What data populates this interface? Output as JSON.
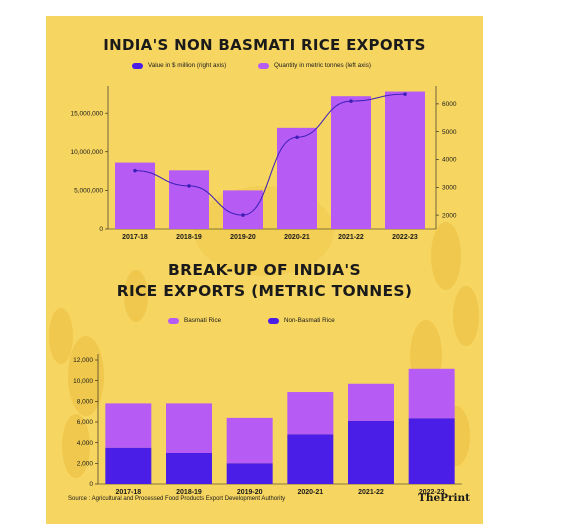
{
  "colors": {
    "background": "#f6d561",
    "violet": "#b65cf5",
    "blue": "#4a1ee6",
    "line": "#3d1fb8"
  },
  "titles": {
    "chart1": "INDIA'S NON BASMATI RICE EXPORTS",
    "chart2_line1": "BREAK-UP OF INDIA'S",
    "chart2_line2": "RICE EXPORTS (METRIC TONNES)"
  },
  "legends": {
    "chart1_value": "Value in $ million (right axis)",
    "chart1_quantity": "Quantity in metric tonnes (left axis)",
    "chart2_basmati": "Basmati Rice",
    "chart2_non_basmati": "Non-Basmati Rice"
  },
  "footer": {
    "source": "Source : Agricultural and Processed Food Products Export Development Authority",
    "logo": "ThePrint"
  },
  "chart_data": [
    {
      "type": "bar",
      "title": "INDIA'S NON BASMATI RICE EXPORTS",
      "categories": [
        "2017-18",
        "2018-19",
        "2019-20",
        "2020-21",
        "2021-22",
        "2022-23"
      ],
      "series": [
        {
          "name": "Quantity in metric tonnes (left axis)",
          "type": "bar",
          "axis": "left",
          "values": [
            8600000,
            7600000,
            5000000,
            13100000,
            17200000,
            17800000
          ]
        },
        {
          "name": "Value in $ million (right axis)",
          "type": "line",
          "axis": "right",
          "values": [
            3600,
            3050,
            2000,
            4800,
            6100,
            6350
          ]
        }
      ],
      "left_ticks": [
        "0",
        "5,000,000",
        "10,000,000",
        "15,000,000"
      ],
      "left_ylim": [
        0,
        18000000
      ],
      "right_ticks": [
        "2000",
        "3000",
        "4000",
        "5000",
        "6000"
      ],
      "right_ylim": [
        1500,
        6500
      ]
    },
    {
      "type": "bar",
      "stacked": true,
      "title": "BREAK-UP OF INDIA'S RICE EXPORTS (METRIC TONNES)",
      "categories": [
        "2017-18",
        "2018-19",
        "2019-20",
        "2020-21",
        "2021-22",
        "2022-23"
      ],
      "series": [
        {
          "name": "Non-Basmati Rice",
          "values": [
            3500,
            3000,
            2000,
            4800,
            6100,
            6350
          ]
        },
        {
          "name": "Basmati Rice",
          "values": [
            4300,
            4800,
            4400,
            4100,
            3600,
            4800
          ]
        }
      ],
      "y_ticks": [
        "0",
        "2,000",
        "4,000",
        "6,000",
        "8,000",
        "10,000",
        "12,000"
      ],
      "ylim": [
        0,
        12000
      ]
    }
  ]
}
